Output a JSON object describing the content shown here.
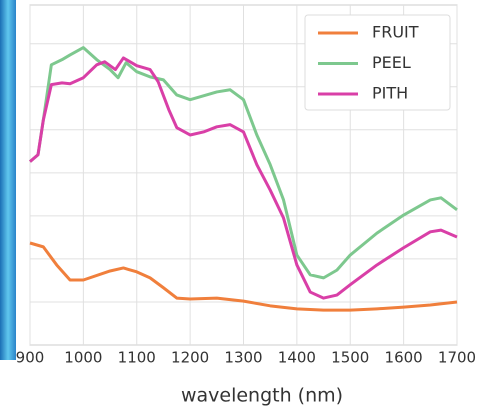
{
  "chart_data": {
    "type": "line",
    "x_label": "wavelength (nm)",
    "xlim": [
      900,
      1700
    ],
    "xticks": [
      900,
      1000,
      1100,
      1200,
      1300,
      1400,
      1500,
      1600,
      1700
    ],
    "ylim": [
      0,
      0.79
    ],
    "yticks": [
      0.1,
      0.2,
      0.3,
      0.4,
      0.5,
      0.6,
      0.7
    ],
    "grid": true,
    "legend": "upper right",
    "series": [
      {
        "name": "FRUIT",
        "color": "#f07f3c",
        "x": [
          900,
          925,
          950,
          975,
          1000,
          1050,
          1075,
          1100,
          1125,
          1150,
          1175,
          1200,
          1250,
          1300,
          1350,
          1400,
          1450,
          1500,
          1550,
          1600,
          1650,
          1700
        ],
        "values": [
          0.237,
          0.228,
          0.186,
          0.151,
          0.151,
          0.172,
          0.179,
          0.17,
          0.156,
          0.133,
          0.109,
          0.107,
          0.109,
          0.102,
          0.091,
          0.084,
          0.081,
          0.081,
          0.084,
          0.088,
          0.093,
          0.1
        ]
      },
      {
        "name": "PEEL",
        "color": "#7dc88e",
        "x": [
          900,
          915,
          925,
          940,
          960,
          975,
          1000,
          1025,
          1050,
          1065,
          1080,
          1100,
          1125,
          1150,
          1175,
          1200,
          1225,
          1250,
          1275,
          1300,
          1325,
          1350,
          1375,
          1400,
          1425,
          1450,
          1475,
          1500,
          1550,
          1600,
          1650,
          1670,
          1700
        ],
        "values": [
          0.426,
          0.442,
          0.523,
          0.651,
          0.663,
          0.674,
          0.691,
          0.663,
          0.64,
          0.621,
          0.656,
          0.635,
          0.623,
          0.616,
          0.581,
          0.57,
          0.579,
          0.588,
          0.593,
          0.57,
          0.488,
          0.419,
          0.337,
          0.209,
          0.163,
          0.156,
          0.174,
          0.209,
          0.26,
          0.302,
          0.337,
          0.342,
          0.314
        ]
      },
      {
        "name": "PITH",
        "color": "#d93fa7",
        "x": [
          900,
          915,
          925,
          940,
          960,
          975,
          1000,
          1025,
          1040,
          1060,
          1075,
          1100,
          1125,
          1140,
          1160,
          1175,
          1200,
          1225,
          1250,
          1275,
          1300,
          1325,
          1350,
          1375,
          1400,
          1425,
          1450,
          1475,
          1500,
          1550,
          1600,
          1650,
          1670,
          1700
        ],
        "values": [
          0.426,
          0.442,
          0.523,
          0.605,
          0.609,
          0.607,
          0.621,
          0.651,
          0.658,
          0.64,
          0.667,
          0.649,
          0.64,
          0.612,
          0.547,
          0.505,
          0.488,
          0.495,
          0.507,
          0.512,
          0.495,
          0.419,
          0.36,
          0.295,
          0.186,
          0.123,
          0.109,
          0.116,
          0.14,
          0.186,
          0.226,
          0.263,
          0.267,
          0.251
        ]
      }
    ]
  }
}
